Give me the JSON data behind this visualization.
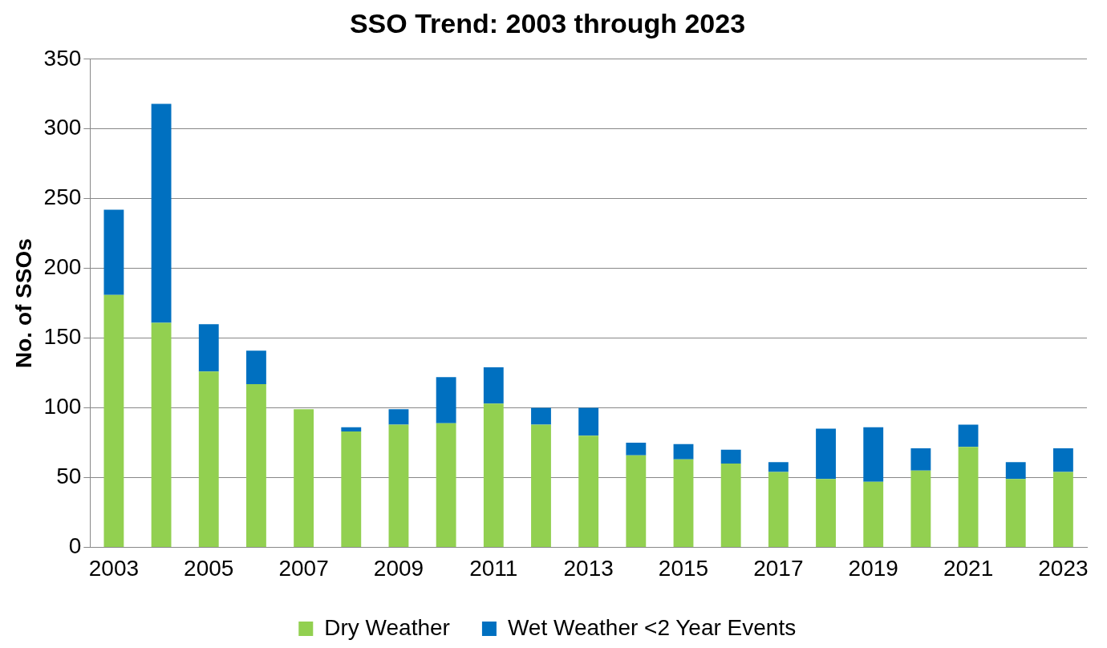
{
  "chart_data": {
    "type": "bar",
    "title": "SSO Trend: 2003 through 2023",
    "ylabel": "No. of SSOs",
    "categories": [
      "2003",
      null,
      "2005",
      null,
      "2007",
      null,
      "2009",
      null,
      "2011",
      null,
      "2013",
      null,
      "2015",
      null,
      "2017",
      null,
      "2019",
      null,
      "2021",
      null,
      "2023"
    ],
    "stacked": true,
    "series": [
      {
        "name": "Dry Weather",
        "color": "#92d050",
        "values": [
          181,
          161,
          126,
          117,
          99,
          83,
          88,
          89,
          103,
          88,
          80,
          66,
          63,
          60,
          54,
          49,
          47,
          55,
          72,
          49,
          54
        ]
      },
      {
        "name": "Wet Weather <2 Year Events",
        "color": "#0070c0",
        "values": [
          61,
          157,
          34,
          24,
          0,
          3,
          11,
          33,
          26,
          12,
          20,
          9,
          11,
          10,
          7,
          36,
          39,
          16,
          16,
          12,
          17
        ]
      }
    ],
    "ylim": [
      0,
      350
    ],
    "yticks": [
      0,
      50,
      100,
      150,
      200,
      250,
      300,
      350
    ],
    "grid": "y",
    "legend": "bottom"
  }
}
